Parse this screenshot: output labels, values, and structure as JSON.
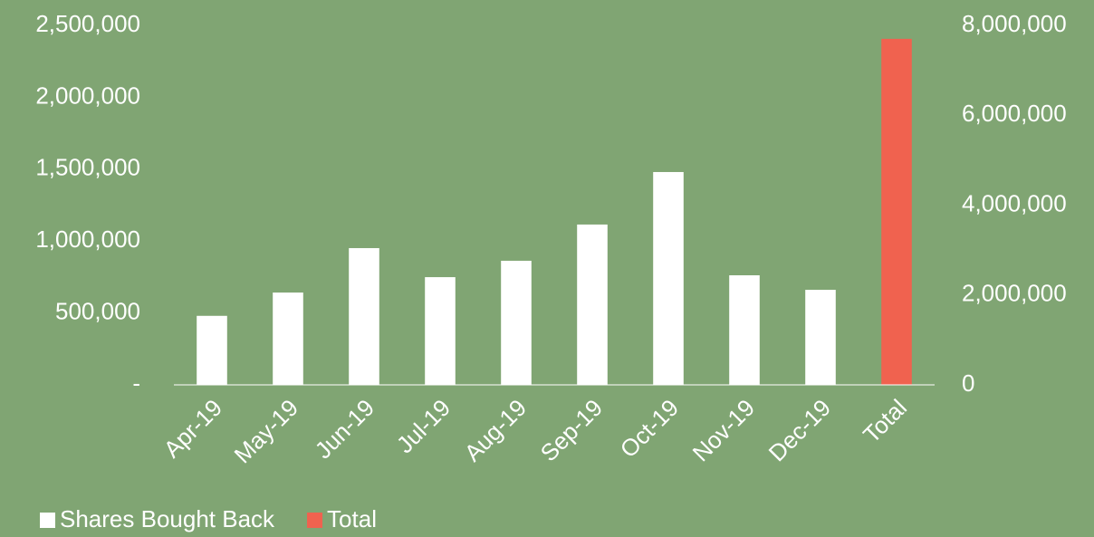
{
  "chart_data": {
    "type": "bar",
    "categories": [
      "Apr-19",
      "May-19",
      "Jun-19",
      "Jul-19",
      "Aug-19",
      "Sep-19",
      "Oct-19",
      "Nov-19",
      "Dec-19",
      "Total"
    ],
    "series": [
      {
        "name": "Shares Bought Back",
        "color": "#ffffff",
        "values": [
          480000,
          642000,
          951000,
          749000,
          863000,
          1115000,
          1480000,
          762000,
          661000,
          null
        ]
      },
      {
        "name": "Total",
        "color": "#f0624f",
        "axis": "y2",
        "values": [
          null,
          null,
          null,
          null,
          null,
          null,
          null,
          null,
          null,
          7700000
        ]
      }
    ],
    "ylim": [
      0,
      2500000
    ],
    "yticks": [
      {
        "value": 0,
        "label": "-"
      },
      {
        "value": 500000,
        "label": "500,000"
      },
      {
        "value": 1000000,
        "label": "1,000,000"
      },
      {
        "value": 1500000,
        "label": "1,500,000"
      },
      {
        "value": 2000000,
        "label": "2,000,000"
      },
      {
        "value": 2500000,
        "label": "2,500,000"
      }
    ],
    "y2lim": [
      0,
      8000000
    ],
    "y2ticks": [
      0,
      {
        "value": 2000000,
        "label": "2,000,000"
      },
      {
        "value": 4000000,
        "label": "4,000,000"
      },
      {
        "value": 6000000,
        "label": "6,000,000"
      },
      {
        "value": 8000000,
        "label": "8,000,000"
      }
    ],
    "legend": "bottom-left"
  }
}
